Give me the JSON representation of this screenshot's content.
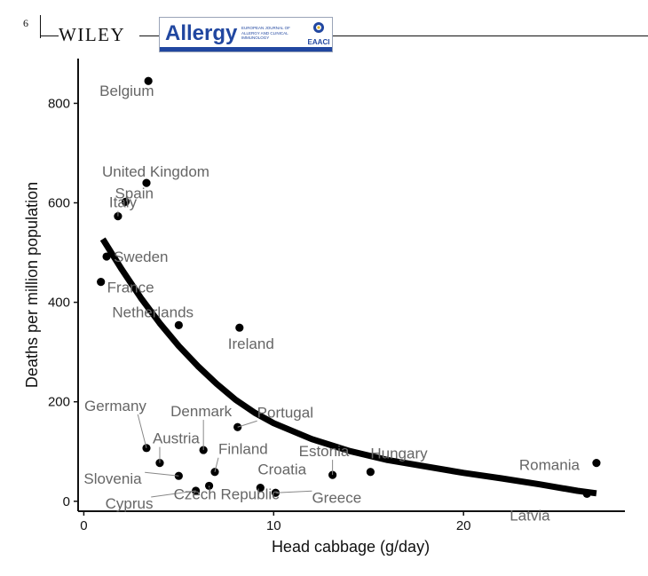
{
  "header": {
    "page_number": "6",
    "publisher": "WILEY",
    "journal": "Allergy",
    "journal_subtitle": "EUROPEAN JOURNAL OF ALLERGY AND CLINICAL IMMUNOLOGY",
    "society_logo_text": "EAACI"
  },
  "chart_data": {
    "type": "scatter",
    "xlabel": "Head cabbage (g/day)",
    "ylabel": "Deaths per million population",
    "xlim": [
      -0.3,
      28.5
    ],
    "ylim": [
      -20,
      890
    ],
    "xticks": [
      0,
      10,
      20
    ],
    "yticks": [
      0,
      200,
      400,
      600,
      800
    ],
    "grid": false,
    "points": [
      {
        "name": "Belgium",
        "x": 3.4,
        "y": 845
      },
      {
        "name": "United Kingdom",
        "x": 3.3,
        "y": 640
      },
      {
        "name": "Spain",
        "x": 2.2,
        "y": 602
      },
      {
        "name": "Italy",
        "x": 1.8,
        "y": 573
      },
      {
        "name": "Sweden",
        "x": 1.2,
        "y": 492
      },
      {
        "name": "France",
        "x": 0.9,
        "y": 441
      },
      {
        "name": "Netherlands",
        "x": 5.0,
        "y": 354
      },
      {
        "name": "Ireland",
        "x": 8.2,
        "y": 349
      },
      {
        "name": "Germany",
        "x": 3.3,
        "y": 107
      },
      {
        "name": "Austria",
        "x": 4.0,
        "y": 77
      },
      {
        "name": "Slovenia",
        "x": 5.0,
        "y": 51
      },
      {
        "name": "Denmark",
        "x": 6.3,
        "y": 103
      },
      {
        "name": "Portugal",
        "x": 8.1,
        "y": 149
      },
      {
        "name": "Finland",
        "x": 6.9,
        "y": 59
      },
      {
        "name": "Cyprus",
        "x": 5.9,
        "y": 21
      },
      {
        "name": "Czech Republic",
        "x": 6.6,
        "y": 31
      },
      {
        "name": "Croatia",
        "x": 9.3,
        "y": 27
      },
      {
        "name": "Greece",
        "x": 10.1,
        "y": 17
      },
      {
        "name": "Estonia",
        "x": 13.1,
        "y": 53
      },
      {
        "name": "Hungary",
        "x": 15.1,
        "y": 59
      },
      {
        "name": "Romania",
        "x": 27.0,
        "y": 77
      },
      {
        "name": "Latvia",
        "x": 26.5,
        "y": 15
      }
    ],
    "fit_line": {
      "x": [
        1,
        2,
        3,
        4,
        5,
        6,
        7,
        8,
        9,
        10,
        12,
        14,
        16,
        18,
        20,
        22,
        24,
        26,
        27
      ],
      "y": [
        527,
        466,
        409,
        358,
        312,
        272,
        236,
        204,
        178,
        157,
        125,
        101,
        83,
        70,
        57,
        46,
        34,
        21,
        16
      ]
    }
  }
}
